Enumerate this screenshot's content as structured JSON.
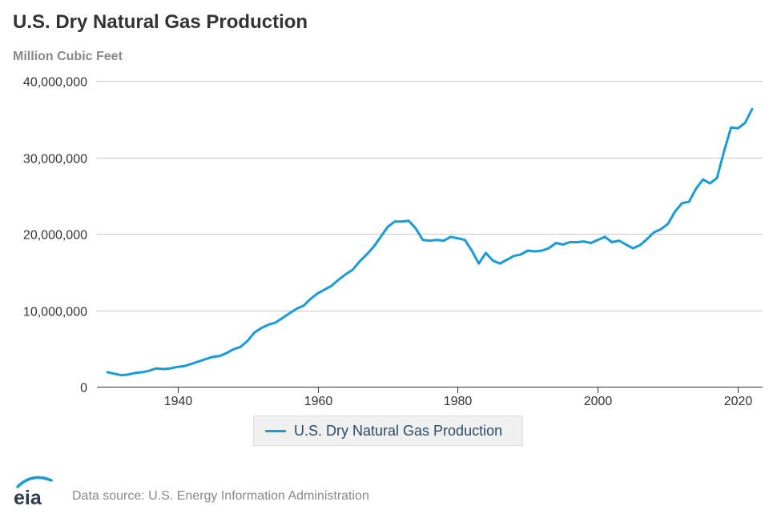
{
  "title": "U.S. Dry Natural Gas Production",
  "subtitle": "Million Cubic Feet",
  "source": "Data source: U.S. Energy Information Administration",
  "logo_text": "eia",
  "colors": {
    "series": "#1a9ad6",
    "grid": "#c8c8c8",
    "axis": "#333333",
    "tick_text": "#333333"
  },
  "chart_data": {
    "type": "line",
    "title": "U.S. Dry Natural Gas Production",
    "ylabel": "Million Cubic Feet",
    "xlabel": "",
    "xlim": [
      1930,
      2022
    ],
    "ylim": [
      0,
      40000000
    ],
    "x_ticks": [
      1940,
      1960,
      1980,
      2000,
      2020
    ],
    "y_ticks": [
      0,
      10000000,
      20000000,
      30000000,
      40000000
    ],
    "x_tick_labels": [
      "1940",
      "1960",
      "1980",
      "2000",
      "2020"
    ],
    "y_tick_labels": [
      "0",
      "10,000,000",
      "20,000,000",
      "30,000,000",
      "40,000,000"
    ],
    "grid": true,
    "legend_position": "bottom-center",
    "series": [
      {
        "name": "U.S. Dry Natural Gas Production",
        "x": [
          1930,
          1931,
          1932,
          1933,
          1934,
          1935,
          1936,
          1937,
          1938,
          1939,
          1940,
          1941,
          1942,
          1943,
          1944,
          1945,
          1946,
          1947,
          1948,
          1949,
          1950,
          1951,
          1952,
          1953,
          1954,
          1955,
          1956,
          1957,
          1958,
          1959,
          1960,
          1961,
          1962,
          1963,
          1964,
          1965,
          1966,
          1967,
          1968,
          1969,
          1970,
          1971,
          1972,
          1973,
          1974,
          1975,
          1976,
          1977,
          1978,
          1979,
          1980,
          1981,
          1982,
          1983,
          1984,
          1985,
          1986,
          1987,
          1988,
          1989,
          1990,
          1991,
          1992,
          1993,
          1994,
          1995,
          1996,
          1997,
          1998,
          1999,
          2000,
          2001,
          2002,
          2003,
          2004,
          2005,
          2006,
          2007,
          2008,
          2009,
          2010,
          2011,
          2012,
          2013,
          2014,
          2015,
          2016,
          2017,
          2018,
          2019,
          2020,
          2021,
          2022
        ],
        "values": [
          1900000,
          1700000,
          1500000,
          1600000,
          1800000,
          1900000,
          2100000,
          2400000,
          2300000,
          2400000,
          2600000,
          2700000,
          3000000,
          3300000,
          3600000,
          3900000,
          4000000,
          4400000,
          4900000,
          5200000,
          6000000,
          7100000,
          7700000,
          8100000,
          8400000,
          9000000,
          9600000,
          10200000,
          10600000,
          11500000,
          12200000,
          12700000,
          13200000,
          14000000,
          14700000,
          15300000,
          16400000,
          17300000,
          18300000,
          19600000,
          20900000,
          21600000,
          21600000,
          21700000,
          20700000,
          19200000,
          19100000,
          19200000,
          19100000,
          19600000,
          19400000,
          19200000,
          17800000,
          16100000,
          17500000,
          16500000,
          16100000,
          16600000,
          17100000,
          17300000,
          17800000,
          17700000,
          17800000,
          18100000,
          18800000,
          18600000,
          18900000,
          18900000,
          19000000,
          18800000,
          19200000,
          19600000,
          18900000,
          19100000,
          18600000,
          18100000,
          18500000,
          19300000,
          20200000,
          20600000,
          21300000,
          22900000,
          24000000,
          24200000,
          25900000,
          27100000,
          26600000,
          27300000,
          30800000,
          33900000,
          33800000,
          34500000,
          36300000
        ]
      }
    ]
  }
}
